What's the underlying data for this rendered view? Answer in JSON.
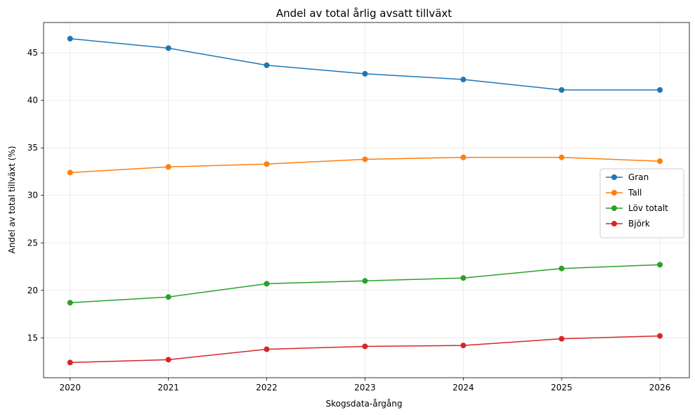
{
  "chart_data": {
    "type": "line",
    "title": "Andel av total årlig avsatt tillväxt",
    "xlabel": "Skogsdata-årgång",
    "ylabel": "Andel av total tillväxt (%)",
    "x": [
      2020,
      2021,
      2022,
      2023,
      2024,
      2025,
      2026
    ],
    "xlim": [
      2019.73,
      2026.3
    ],
    "ylim": [
      10.8,
      48.2
    ],
    "yticks": [
      15,
      20,
      25,
      30,
      35,
      40,
      45
    ],
    "grid": true,
    "legend_position": "center-right",
    "series": [
      {
        "name": "Gran",
        "color": "#1f77b4",
        "values": [
          46.5,
          45.5,
          43.7,
          42.8,
          42.2,
          41.1,
          41.1
        ]
      },
      {
        "name": "Tall",
        "color": "#ff7f0e",
        "values": [
          32.4,
          33.0,
          33.3,
          33.8,
          34.0,
          34.0,
          33.6
        ]
      },
      {
        "name": "Löv totalt",
        "color": "#2ca02c",
        "values": [
          18.7,
          19.3,
          20.7,
          21.0,
          21.3,
          22.3,
          22.7
        ]
      },
      {
        "name": "Björk",
        "color": "#d62728",
        "values": [
          12.4,
          12.7,
          13.8,
          14.1,
          14.2,
          14.9,
          15.2
        ]
      }
    ]
  }
}
